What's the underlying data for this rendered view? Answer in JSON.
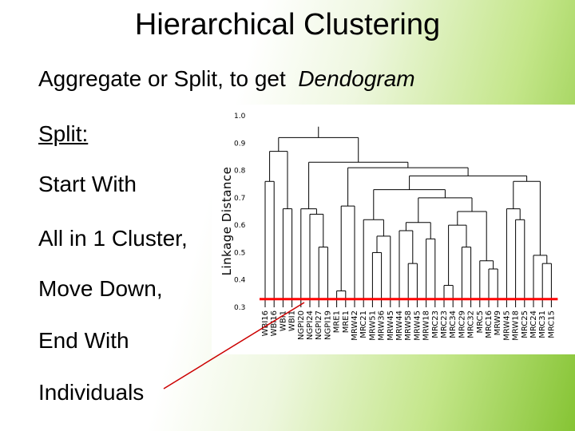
{
  "slide": {
    "title": "Hierarchical Clustering",
    "subtitle_prefix": "Aggregate or Split, to get",
    "subtitle_emph": "Dendogram",
    "bullets": [
      "Split:",
      "Start With",
      "All in 1 Cluster,",
      "Move Down,",
      "End With",
      "Individuals"
    ]
  },
  "chart_data": {
    "type": "dendrogram",
    "ylabel": "Linkage Distance",
    "ylim": [
      0.3,
      1.0
    ],
    "yticks": [
      "1.0",
      "0.9",
      "0.8",
      "0.7",
      "0.6",
      "0.5",
      "0.4",
      "0.3"
    ],
    "leaves": [
      "WBI16",
      "WBI16",
      "WBI1",
      "WBI1",
      "NGPI20",
      "NGPI24",
      "NGPI27",
      "NGPI19",
      "MRE1",
      "MRE1",
      "MRW42",
      "MRC21",
      "MRW51",
      "MRW36",
      "MRW45",
      "MRW44",
      "MRW58",
      "MRW45",
      "MRW18",
      "MRC23",
      "MRC23",
      "MRC34",
      "MRC29",
      "MRC32",
      "MRC5",
      "MRC16",
      "MRW9",
      "MRW45",
      "MRW18",
      "MRC25",
      "MRC24",
      "MRC31",
      "MRC15"
    ],
    "cut_line": 0.33,
    "colors": {
      "dendrogram": "#000000",
      "cut_line": "#ff0000",
      "pointer": "#cc0000"
    }
  }
}
